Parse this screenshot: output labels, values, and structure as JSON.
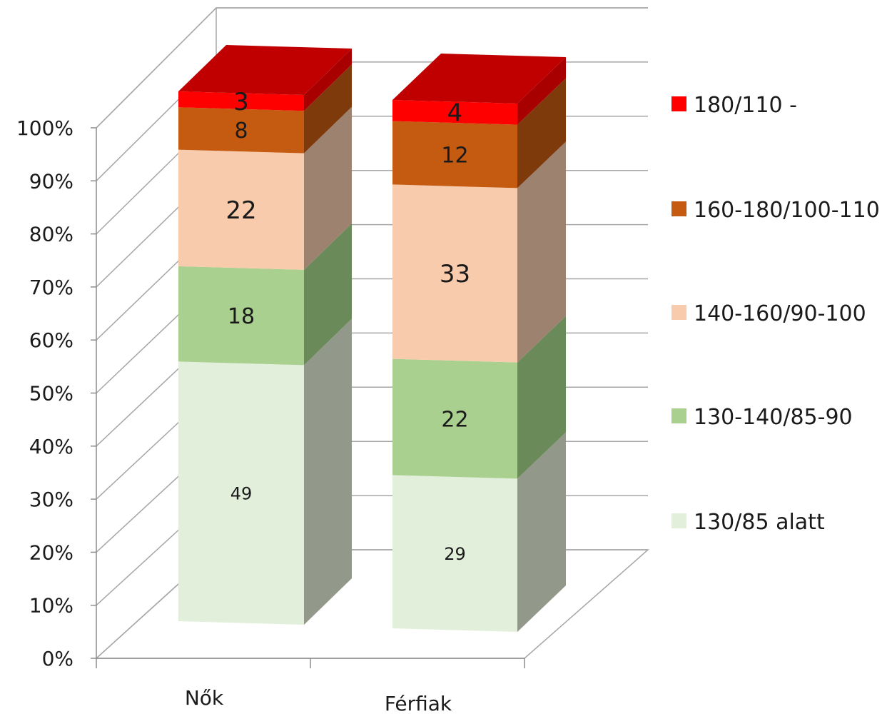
{
  "chart_data": {
    "type": "bar",
    "stacked": true,
    "percent_stacked": true,
    "three_d": true,
    "categories": [
      "Nők",
      "Férfiak"
    ],
    "series": [
      {
        "name": "130/85 alatt",
        "values": [
          49,
          29
        ],
        "color": "#e2efda",
        "side_color": "#93998a",
        "top_color": "#d6e8c8"
      },
      {
        "name": "130-140/85-90",
        "values": [
          18,
          22
        ],
        "color": "#a9d08e",
        "side_color": "#6a8a5a",
        "top_color": "#96c07a"
      },
      {
        "name": "140-160/90-100",
        "values": [
          22,
          33
        ],
        "color": "#f8cbad",
        "side_color": "#9d8270",
        "top_color": "#eab896"
      },
      {
        "name": "160-180/100-110",
        "values": [
          8,
          12
        ],
        "color": "#c55a11",
        "side_color": "#7f3a0b",
        "top_color": "#b04e0e"
      },
      {
        "name": "180/110 -",
        "values": [
          3,
          4
        ],
        "color": "#ff0000",
        "side_color": "#a80000",
        "top_color": "#c00000"
      }
    ],
    "data_labels": [
      [
        "49",
        "18",
        "22",
        "8",
        "3"
      ],
      [
        "29",
        "22",
        "33",
        "12",
        "4"
      ]
    ],
    "y_ticks": [
      "0%",
      "10%",
      "20%",
      "30%",
      "40%",
      "50%",
      "60%",
      "70%",
      "80%",
      "90%",
      "100%"
    ],
    "ylim": [
      0,
      100
    ],
    "grid": true,
    "legend": "right"
  }
}
